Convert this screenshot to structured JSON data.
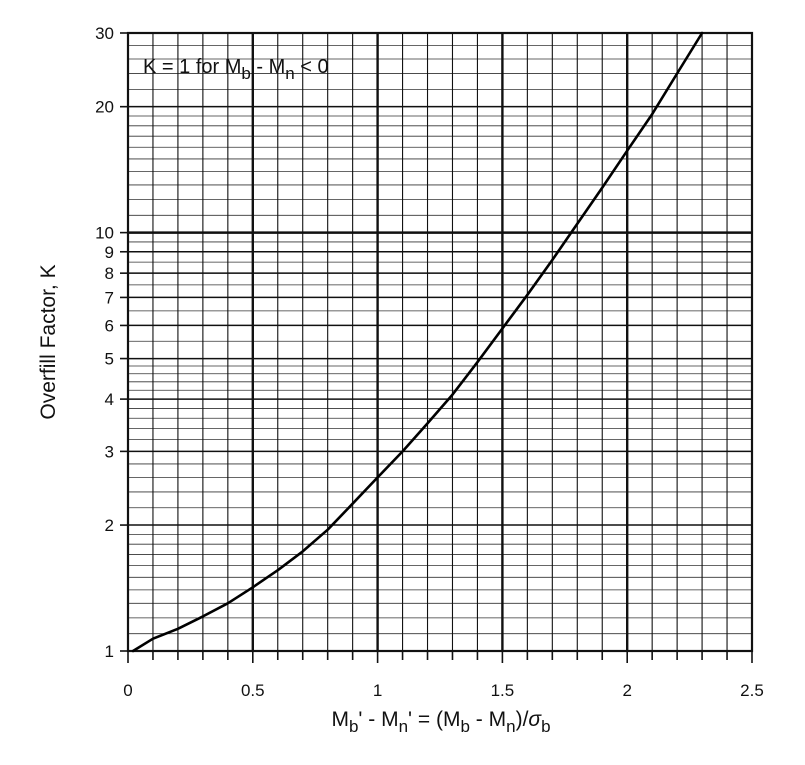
{
  "chart_data": {
    "type": "line",
    "title": "",
    "xlabel": {
      "main": "M",
      "sub1": "b",
      "mid1": "' - M",
      "sub2": "n",
      "mid2": "' = (M",
      "sub3": "b",
      "mid3": " - M",
      "sub4": "n",
      "mid4": ")/",
      "sigma": "σ",
      "sub5": "b"
    },
    "ylabel": "Overfill Factor, K",
    "xlim": [
      0,
      2.5
    ],
    "ylim": [
      1,
      30
    ],
    "yscale": "log",
    "grid": true,
    "xticks": [
      "0",
      "0.5",
      "1",
      "1.5",
      "2",
      "2.5"
    ],
    "yticks": [
      "1",
      "2",
      "3",
      "4",
      "5",
      "6",
      "7",
      "8",
      "9",
      "10",
      "20",
      "30"
    ],
    "annotation": {
      "pre": "K = 1 for M",
      "sub1": "b",
      "mid": " - M",
      "sub2": "n",
      "post": " < 0"
    },
    "series": [
      {
        "x": [
          0.02,
          0.1,
          0.2,
          0.3,
          0.4,
          0.5,
          0.6,
          0.7,
          0.8,
          0.9,
          1.0,
          1.1,
          1.2,
          1.3,
          1.4,
          1.5,
          1.6,
          1.7,
          1.8,
          1.9,
          2.0,
          2.1,
          2.2,
          2.3
        ],
        "y": [
          1.0,
          1.07,
          1.13,
          1.21,
          1.3,
          1.42,
          1.56,
          1.73,
          1.95,
          2.25,
          2.6,
          3.0,
          3.5,
          4.1,
          4.9,
          5.9,
          7.1,
          8.6,
          10.5,
          12.8,
          15.7,
          19.2,
          24.0,
          30.0
        ],
        "color": "#000000"
      }
    ]
  }
}
